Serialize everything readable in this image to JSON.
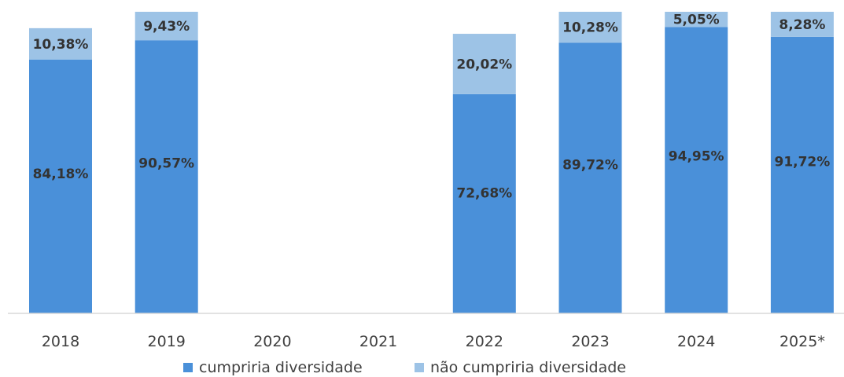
{
  "chart_data": {
    "type": "bar",
    "stacked": true,
    "title": "",
    "xlabel": "",
    "ylabel": "",
    "ylim": [
      0,
      100
    ],
    "grid": false,
    "legend_position": "bottom",
    "categories": [
      "2018",
      "2019",
      "2020",
      "2021",
      "2022",
      "2023",
      "2024",
      "2025*"
    ],
    "series": [
      {
        "name": "cumpriria diversidade",
        "color": "#4a90d9",
        "values": [
          84.18,
          90.57,
          null,
          null,
          72.68,
          89.72,
          94.95,
          91.72
        ],
        "labels": [
          "84,18%",
          "90,57%",
          "",
          "",
          "72,68%",
          "89,72%",
          "94,95%",
          "91,72%"
        ]
      },
      {
        "name": "não cumpriria diversidade",
        "color": "#9dc3e6",
        "values": [
          10.38,
          9.43,
          null,
          null,
          20.02,
          10.28,
          5.05,
          8.28
        ],
        "labels": [
          "10,38%",
          "9,43%",
          "",
          "",
          "20,02%",
          "10,28%",
          "5,05%",
          "8,28%"
        ]
      }
    ]
  }
}
